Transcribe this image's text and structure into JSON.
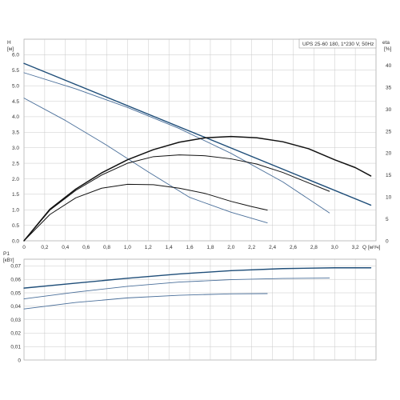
{
  "chart_data": [
    {
      "type": "line",
      "title": "UPS 25-60 180, 1*230 V, 50Hz",
      "ylabel": "H",
      "yunit": "[м]",
      "y2label": "eta",
      "y2unit": "[%]",
      "xlabel": "Q",
      "xunit": "[м³/ч]",
      "xlim": [
        0,
        3.4
      ],
      "ylim": [
        0,
        6.5
      ],
      "y2lim": [
        0,
        46
      ],
      "x_ticks": [
        "0",
        "0,2",
        "0,4",
        "0,6",
        "0,8",
        "1,0",
        "1,2",
        "1,4",
        "1,6",
        "1,8",
        "2,0",
        "2,2",
        "2,4",
        "2,6",
        "2,8",
        "3,0",
        "3,2"
      ],
      "y_ticks": [
        "0.0",
        "0.5",
        "1.0",
        "1.5",
        "2.0",
        "2.5",
        "3.0",
        "3.5",
        "4.0",
        "4.5",
        "5.0",
        "5.5",
        "6.0"
      ],
      "y2_ticks": [
        "0",
        "5",
        "10",
        "15",
        "20",
        "25",
        "30",
        "35",
        "40"
      ],
      "grid": true,
      "series": [
        {
          "axis": "H",
          "color": "#1f4e79",
          "width": 1.4,
          "x": [
            0,
            3.35
          ],
          "y": [
            5.72,
            1.15
          ]
        },
        {
          "axis": "H",
          "color": "#4a6f9a",
          "width": 0.9,
          "x": [
            0,
            0.5,
            1.0,
            1.5,
            2.0,
            2.5,
            2.95
          ],
          "y": [
            5.42,
            4.9,
            4.3,
            3.62,
            2.82,
            1.9,
            0.9
          ]
        },
        {
          "axis": "H",
          "color": "#4a6f9a",
          "width": 0.9,
          "x": [
            0,
            0.4,
            0.8,
            1.2,
            1.6,
            2.0,
            2.35
          ],
          "y": [
            4.6,
            3.88,
            3.08,
            2.22,
            1.4,
            0.92,
            0.58
          ]
        },
        {
          "axis": "eta",
          "color": "#111111",
          "width": 1.5,
          "x": [
            0,
            0.25,
            0.5,
            0.75,
            1.0,
            1.25,
            1.5,
            1.75,
            2.0,
            2.25,
            2.5,
            2.75,
            3.0,
            3.2,
            3.35
          ],
          "y": [
            0,
            7.2,
            11.8,
            15.5,
            18.5,
            20.8,
            22.5,
            23.5,
            23.8,
            23.5,
            22.6,
            21.0,
            18.5,
            16.7,
            14.8
          ]
        },
        {
          "axis": "eta",
          "color": "#111111",
          "width": 1.0,
          "x": [
            0,
            0.25,
            0.5,
            0.75,
            1.0,
            1.25,
            1.5,
            1.75,
            2.0,
            2.25,
            2.5,
            2.75,
            2.95
          ],
          "y": [
            0,
            7.0,
            11.5,
            15.0,
            17.7,
            19.2,
            19.6,
            19.4,
            18.7,
            17.5,
            15.6,
            13.2,
            11.3
          ]
        },
        {
          "axis": "eta",
          "color": "#111111",
          "width": 1.0,
          "x": [
            0,
            0.25,
            0.5,
            0.75,
            1.0,
            1.25,
            1.5,
            1.75,
            2.0,
            2.2,
            2.35
          ],
          "y": [
            0,
            6.0,
            9.8,
            12.0,
            12.9,
            12.8,
            12.0,
            10.8,
            9.0,
            7.8,
            7.0
          ]
        }
      ]
    },
    {
      "type": "line",
      "ylabel": "P1",
      "yunit": "[кВт]",
      "xlim": [
        0,
        3.4
      ],
      "ylim": [
        0,
        0.075
      ],
      "y_ticks": [
        "0",
        "0,01",
        "0,02",
        "0,03",
        "0,04",
        "0,05",
        "0,06",
        "0,07"
      ],
      "grid": true,
      "series": [
        {
          "color": "#1f4e79",
          "width": 1.4,
          "x": [
            0,
            0.5,
            1.0,
            1.5,
            2.0,
            2.5,
            3.0,
            3.35
          ],
          "y": [
            0.0535,
            0.0572,
            0.0608,
            0.064,
            0.0665,
            0.068,
            0.0686,
            0.0686
          ]
        },
        {
          "color": "#4a6f9a",
          "width": 0.9,
          "x": [
            0,
            0.5,
            1.0,
            1.5,
            2.0,
            2.5,
            2.95
          ],
          "y": [
            0.0455,
            0.0505,
            0.0548,
            0.058,
            0.0598,
            0.0607,
            0.061
          ]
        },
        {
          "color": "#4a6f9a",
          "width": 0.9,
          "x": [
            0,
            0.5,
            1.0,
            1.5,
            2.0,
            2.35
          ],
          "y": [
            0.038,
            0.0428,
            0.0462,
            0.0482,
            0.0492,
            0.0494
          ]
        }
      ]
    }
  ]
}
